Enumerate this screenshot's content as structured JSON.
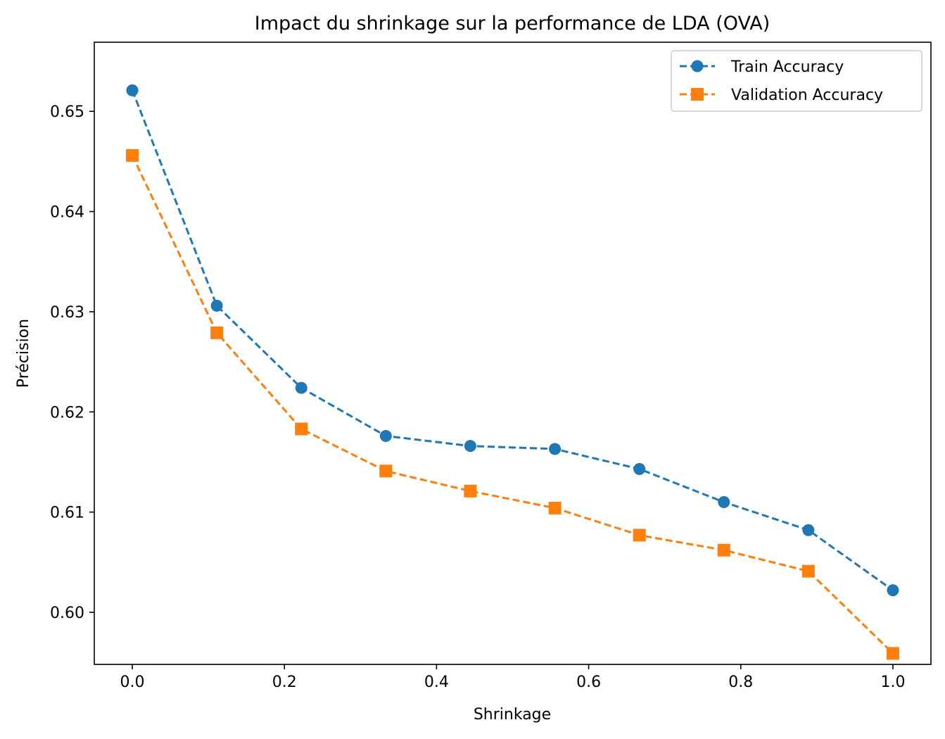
{
  "chart_data": {
    "type": "line",
    "title": "Impact du shrinkage sur la performance de LDA (OVA)",
    "xlabel": "Shrinkage",
    "ylabel": "Précision",
    "x": [
      0.0,
      0.1111,
      0.2222,
      0.3333,
      0.4444,
      0.5556,
      0.6667,
      0.7778,
      0.8889,
      1.0
    ],
    "xlim": [
      -0.05,
      1.05
    ],
    "ylim": [
      0.5948,
      0.6569
    ],
    "xticks": [
      0.0,
      0.2,
      0.4,
      0.6,
      0.8,
      1.0
    ],
    "xtick_labels": [
      "0.0",
      "0.2",
      "0.4",
      "0.6",
      "0.8",
      "1.0"
    ],
    "yticks": [
      0.6,
      0.61,
      0.62,
      0.63,
      0.64,
      0.65
    ],
    "ytick_labels": [
      "0.60",
      "0.61",
      "0.62",
      "0.63",
      "0.64",
      "0.65"
    ],
    "grid": false,
    "legend_position": "top-right",
    "series": [
      {
        "name": "Train Accuracy",
        "color": "#1f77b4",
        "marker": "circle",
        "linestyle": "dashed",
        "values": [
          0.6521,
          0.6306,
          0.6224,
          0.6176,
          0.6166,
          0.6163,
          0.6143,
          0.611,
          0.6082,
          0.6022
        ]
      },
      {
        "name": "Validation Accuracy",
        "color": "#ff7f0e",
        "marker": "square",
        "linestyle": "dashed",
        "values": [
          0.6456,
          0.6279,
          0.6183,
          0.6141,
          0.6121,
          0.6104,
          0.6077,
          0.6062,
          0.6041,
          0.5959
        ]
      }
    ]
  }
}
